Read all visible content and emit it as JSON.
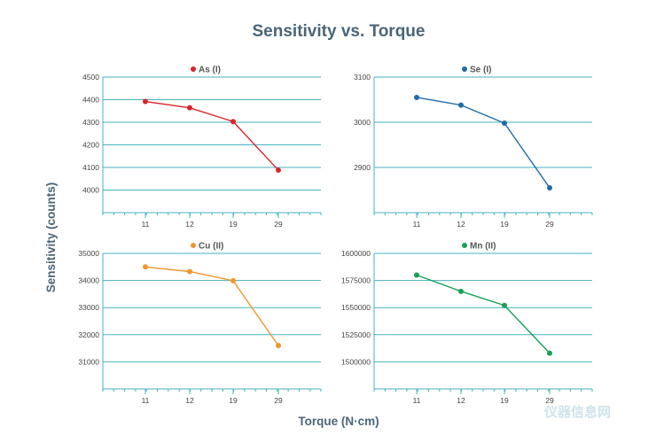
{
  "figure": {
    "title": "Sensitivity vs. Torque",
    "xlabel": "Torque (N·cm)",
    "ylabel": "Sensitivity (counts)",
    "watermark": "仪器信息网"
  },
  "chart_data": [
    {
      "type": "line",
      "title": "As (I)",
      "color": "#d7262b",
      "categories": [
        "11",
        "12",
        "19",
        "29"
      ],
      "values": [
        4392,
        4364,
        4303,
        4088
      ],
      "ylim": [
        3900,
        4500
      ],
      "yticks": [
        4000,
        4100,
        4200,
        4300,
        4400,
        4500
      ],
      "ytick_labels": [
        "4000",
        "4100",
        "4200",
        "4300",
        "4400",
        "4500"
      ]
    },
    {
      "type": "line",
      "title": "Se (I)",
      "color": "#1f6ba8",
      "categories": [
        "11",
        "12",
        "19",
        "29"
      ],
      "values": [
        3055,
        3038,
        2998,
        2855
      ],
      "ylim": [
        2800,
        3100
      ],
      "yticks": [
        2900,
        3000,
        3100
      ],
      "ytick_labels": [
        "2900",
        "3000",
        "3100"
      ]
    },
    {
      "type": "line",
      "title": "Cu (II)",
      "color": "#f0962f",
      "categories": [
        "11",
        "12",
        "19",
        "29"
      ],
      "values": [
        34500,
        34330,
        33990,
        31600
      ],
      "ylim": [
        30000,
        35000
      ],
      "yticks": [
        31000,
        32000,
        33000,
        34000,
        35000
      ],
      "ytick_labels": [
        "31000",
        "32000",
        "33000",
        "34000",
        "35000"
      ]
    },
    {
      "type": "line",
      "title": "Mn (II)",
      "color": "#17a05a",
      "categories": [
        "11",
        "12",
        "19",
        "29"
      ],
      "values": [
        1580000,
        1565000,
        1552000,
        1508000
      ],
      "ylim": [
        1475000,
        1600000
      ],
      "yticks": [
        1500000,
        1525000,
        1550000,
        1575000,
        1600000
      ],
      "ytick_labels": [
        "1500000",
        "1525000",
        "1550000",
        "1575000",
        "1600000"
      ]
    }
  ]
}
